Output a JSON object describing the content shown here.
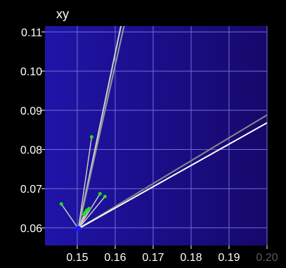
{
  "chart_data": {
    "type": "scatter",
    "title": "xy",
    "xlabel": "",
    "ylabel": "",
    "xlim": [
      0.1415,
      0.2
    ],
    "ylim": [
      0.0555,
      0.1115
    ],
    "grid": true,
    "x_ticks": [
      {
        "value": 0.15,
        "label": "0.15"
      },
      {
        "value": 0.16,
        "label": "0.16"
      },
      {
        "value": 0.17,
        "label": "0.17"
      },
      {
        "value": 0.18,
        "label": "0.18"
      },
      {
        "value": 0.19,
        "label": "0.19"
      },
      {
        "value": 0.2,
        "label": "0.20",
        "faded": true
      }
    ],
    "y_ticks": [
      {
        "value": 0.06,
        "label": "0.06"
      },
      {
        "value": 0.07,
        "label": "0.07"
      },
      {
        "value": 0.08,
        "label": "0.08"
      },
      {
        "value": 0.09,
        "label": "0.09"
      },
      {
        "value": 0.1,
        "label": "0.10"
      },
      {
        "value": 0.11,
        "label": "0.11"
      }
    ],
    "origin": {
      "x": 0.1503,
      "y": 0.0598
    },
    "points": [
      {
        "x": 0.1458,
        "y": 0.0661
      },
      {
        "x": 0.1538,
        "y": 0.0832
      },
      {
        "x": 0.1521,
        "y": 0.0639
      },
      {
        "x": 0.1525,
        "y": 0.0645
      },
      {
        "x": 0.1531,
        "y": 0.0649
      },
      {
        "x": 0.1518,
        "y": 0.0634
      },
      {
        "x": 0.156,
        "y": 0.0687
      },
      {
        "x": 0.1573,
        "y": 0.068
      }
    ],
    "rays": [
      {
        "x1": 0.1503,
        "y1": 0.0598,
        "x2": 0.164,
        "y2": 0.123,
        "color": "#d0d0d0"
      },
      {
        "x1": 0.1503,
        "y1": 0.0598,
        "x2": 0.165,
        "y2": 0.123,
        "color": "#9a9a9a"
      },
      {
        "x1": 0.1503,
        "y1": 0.0598,
        "x2": 0.2,
        "y2": 0.0888,
        "color": "#8a8a8a"
      },
      {
        "x1": 0.1503,
        "y1": 0.0598,
        "x2": 0.2,
        "y2": 0.0868,
        "color": "#ffffff"
      }
    ],
    "colors": {
      "background": "#000000",
      "plot_gradient_left": "#1f14a8",
      "plot_gradient_right": "#16086a",
      "grid": "#6e6ed6",
      "points": "#22e01e",
      "origin": "#1a1aff",
      "spokes": "#c8c8c8"
    }
  }
}
